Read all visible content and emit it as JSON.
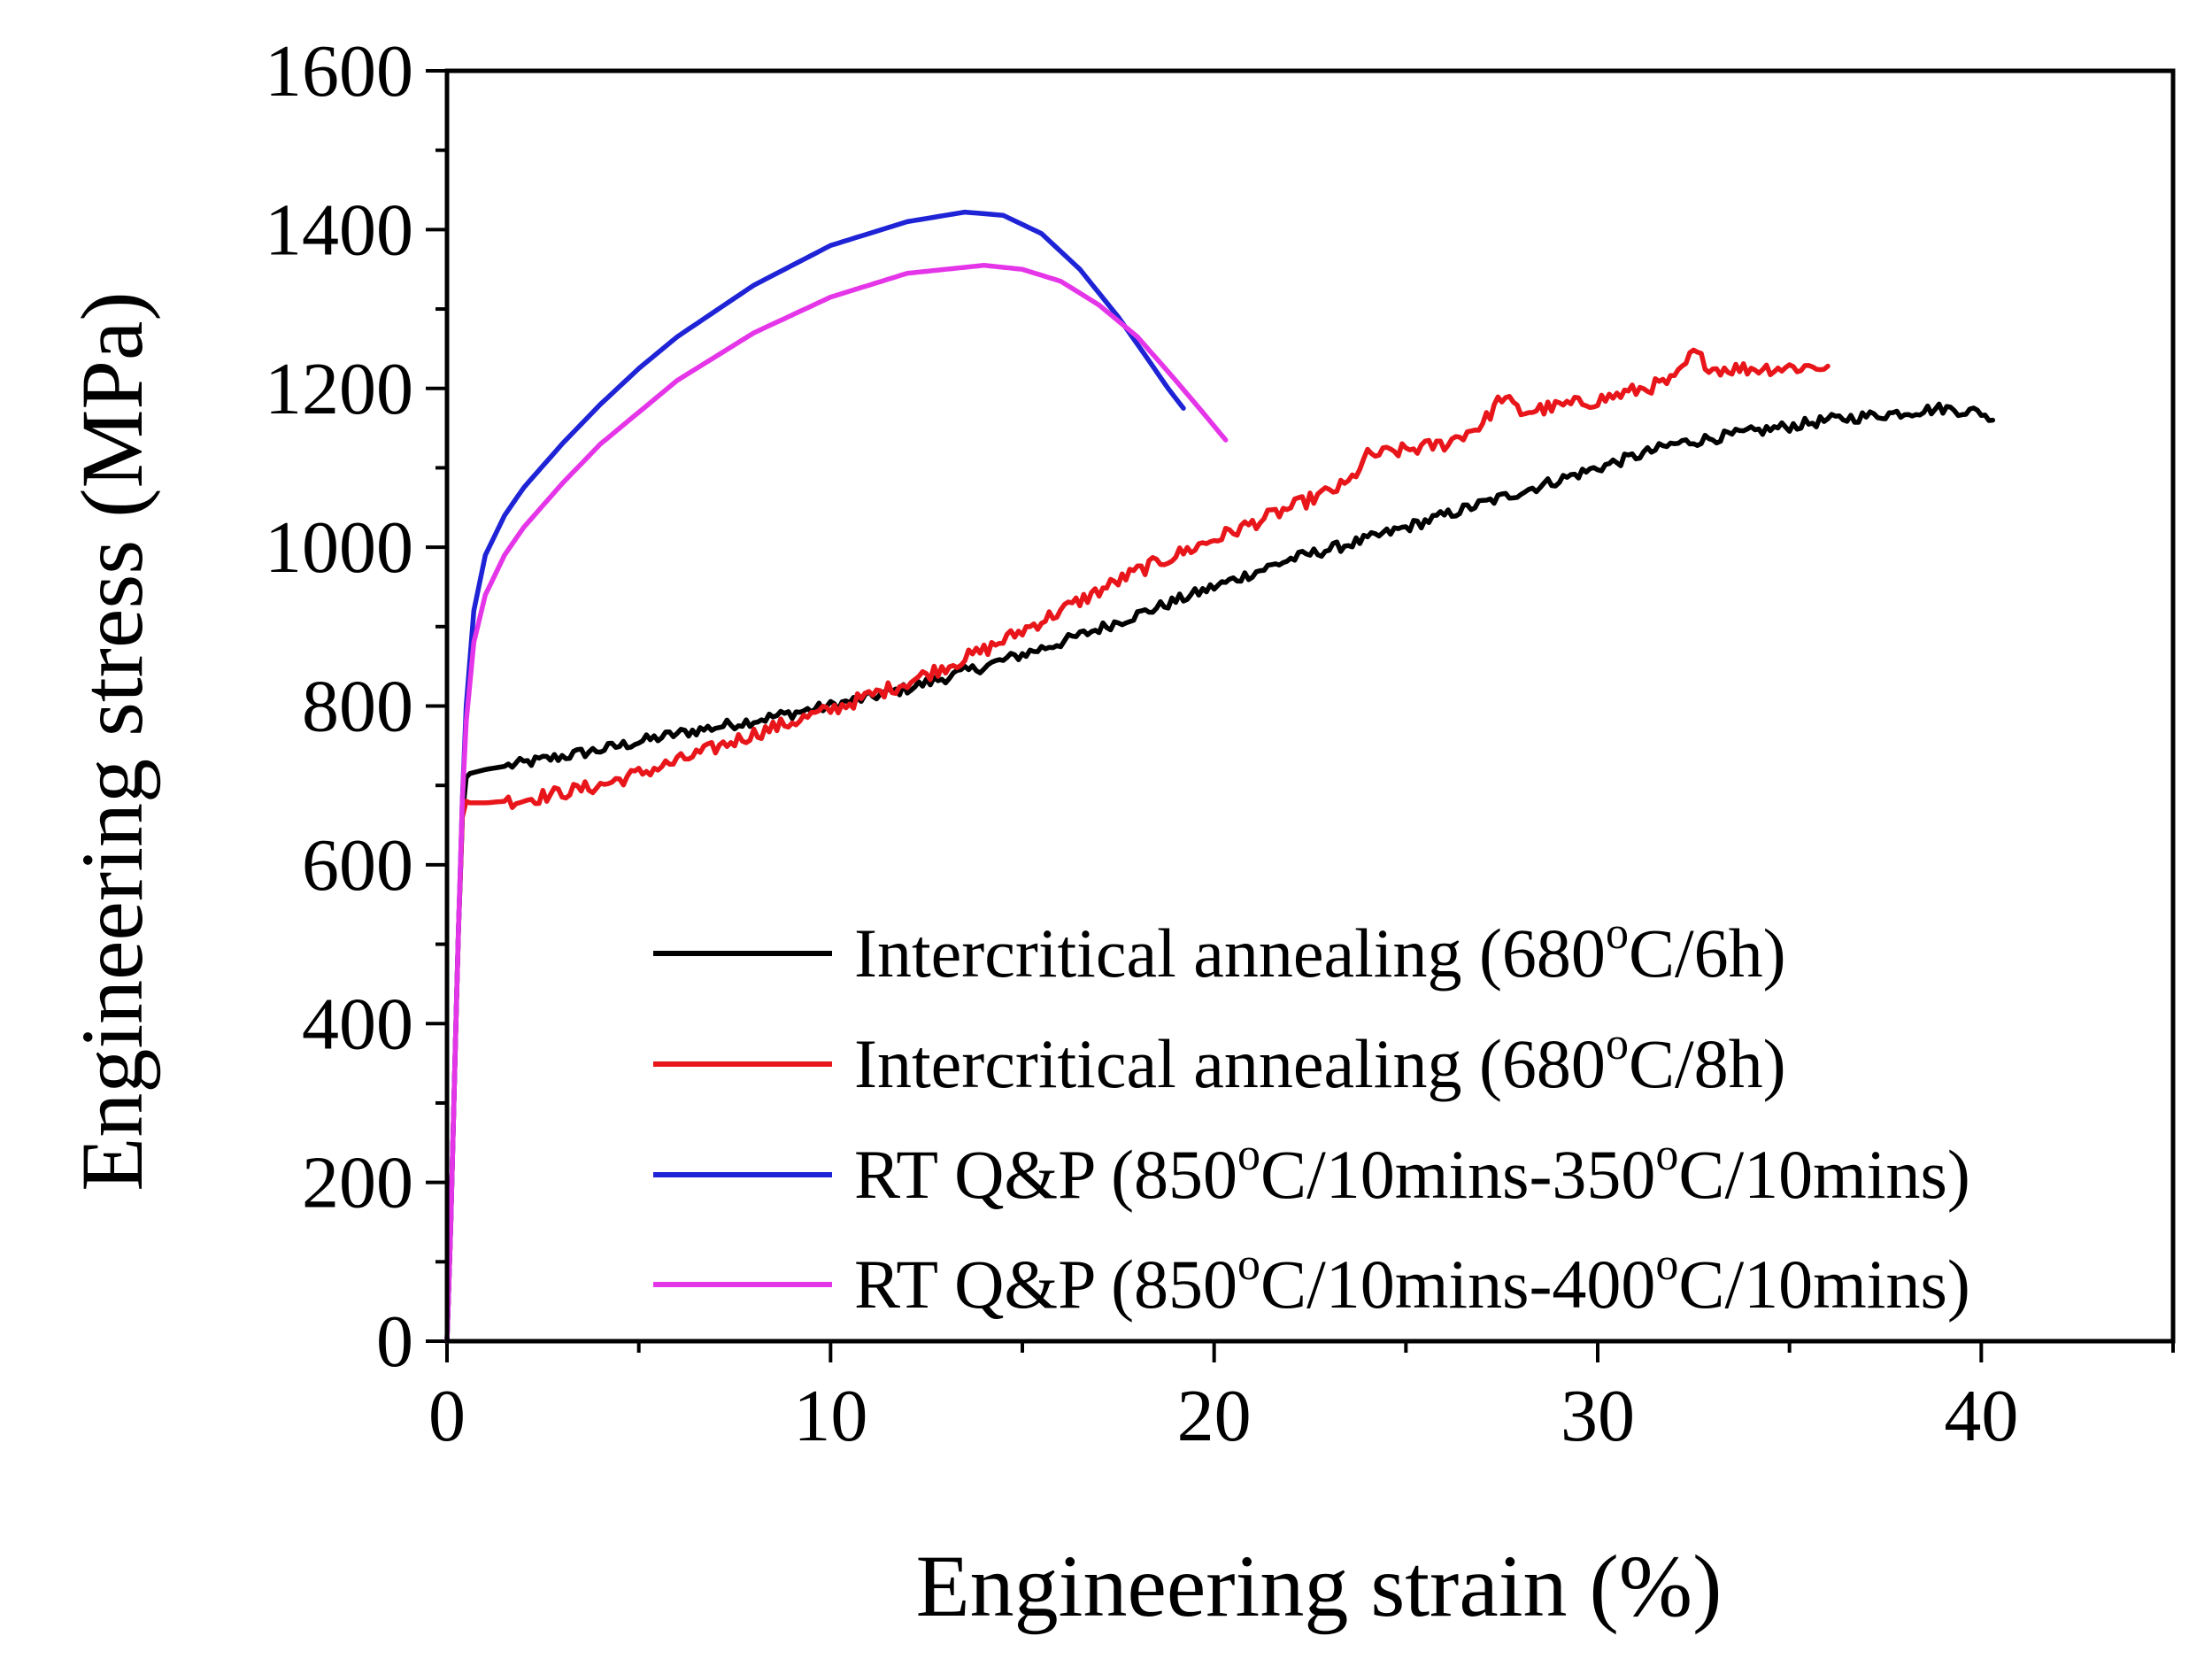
{
  "chart_data": {
    "type": "line",
    "title": "",
    "xlabel": "Engineering strain (%)",
    "ylabel": "Engineering stress (MPa)",
    "xlim": [
      0,
      45
    ],
    "ylim": [
      0,
      1600
    ],
    "x_ticks": [
      0,
      10,
      20,
      30,
      40
    ],
    "y_ticks": [
      0,
      200,
      400,
      600,
      800,
      1000,
      1200,
      1400,
      1600
    ],
    "x_minor_step": 5,
    "y_minor_step": 100,
    "grid": false,
    "legend_position": "bottom-right",
    "series": [
      {
        "name_prefix": "Intercritical annealing (680",
        "name_suffix": "C/6h)",
        "color": "#000000",
        "x": [
          0,
          0.1,
          0.2,
          0.3,
          0.4,
          0.5,
          0.6,
          1,
          2,
          4,
          6,
          8,
          10,
          12,
          14,
          16,
          18,
          20,
          22,
          24,
          26,
          28,
          30,
          32,
          34,
          36,
          38,
          39,
          39.5,
          40,
          40.3
        ],
        "y": [
          0,
          150,
          340,
          520,
          660,
          710,
          715,
          720,
          728,
          745,
          765,
          782,
          800,
          822,
          850,
          880,
          915,
          950,
          985,
          1010,
          1040,
          1070,
          1100,
          1130,
          1145,
          1160,
          1170,
          1175,
          1172,
          1170,
          1160
        ],
        "jitter": 7
      },
      {
        "name_prefix": "Intercritical annealing (680",
        "name_suffix": "C/8h)",
        "color": "#e8161b",
        "x": [
          0,
          0.1,
          0.2,
          0.3,
          0.4,
          0.5,
          0.6,
          1,
          2,
          4,
          6,
          8,
          10,
          12,
          14,
          16,
          18,
          20,
          22,
          23.5,
          24,
          26,
          27,
          27.5,
          28,
          30,
          32,
          32.5,
          33,
          34,
          36
        ],
        "y": [
          0,
          150,
          340,
          520,
          660,
          680,
          678,
          678,
          682,
          700,
          730,
          765,
          795,
          830,
          870,
          920,
          970,
          1010,
          1050,
          1080,
          1115,
          1130,
          1155,
          1190,
          1170,
          1185,
          1210,
          1245,
          1225,
          1225,
          1228
        ],
        "jitter": 9
      },
      {
        "name_prefix": "RT Q&P (850",
        "name_mid": "C/10mins-350",
        "name_suffix": "C/10mins)",
        "color": "#1f23d6",
        "x": [
          0,
          0.1,
          0.2,
          0.3,
          0.4,
          0.5,
          0.7,
          1,
          1.5,
          2,
          3,
          4,
          5,
          6,
          8,
          10,
          12,
          13.5,
          14.5,
          15.5,
          16.5,
          17.5,
          18.3,
          18.8,
          19.2
        ],
        "y": [
          0,
          150,
          340,
          520,
          680,
          800,
          920,
          990,
          1040,
          1075,
          1130,
          1180,
          1225,
          1265,
          1330,
          1380,
          1410,
          1422,
          1418,
          1395,
          1350,
          1290,
          1235,
          1200,
          1175
        ],
        "jitter": 0
      },
      {
        "name_prefix": "RT Q&P (850",
        "name_mid": "C/10mins-400",
        "name_suffix": "C/10mins)",
        "color": "#e535e8",
        "x": [
          0,
          0.1,
          0.2,
          0.3,
          0.4,
          0.5,
          0.7,
          1,
          1.5,
          2,
          3,
          4,
          6,
          8,
          10,
          12,
          14,
          15,
          16,
          17,
          18,
          19,
          19.7,
          20.3
        ],
        "y": [
          0,
          150,
          340,
          520,
          680,
          780,
          880,
          940,
          990,
          1025,
          1080,
          1130,
          1210,
          1270,
          1315,
          1345,
          1355,
          1350,
          1335,
          1305,
          1265,
          1210,
          1170,
          1135
        ],
        "jitter": 0
      }
    ]
  }
}
